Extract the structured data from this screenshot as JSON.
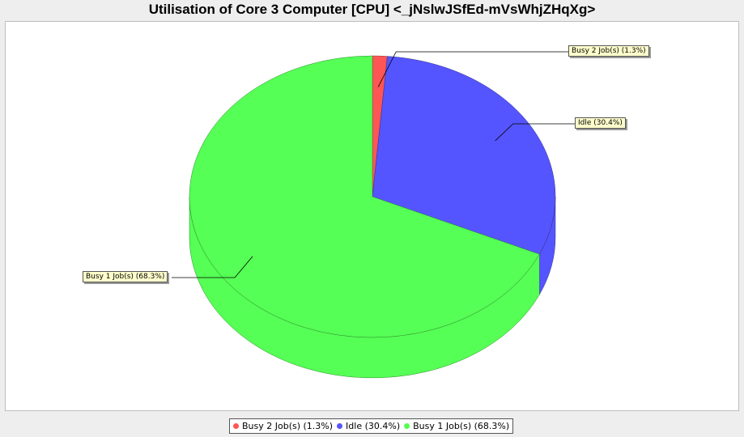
{
  "chart_data": {
    "type": "pie",
    "title": "Utilisation of Core 3 Computer [CPU] <_jNslwJSfEd-mVsWhjZHqXg>",
    "slices": [
      {
        "label": "Busy 2 Job(s) (1.3%)",
        "value": 1.3,
        "color": "#ff5555"
      },
      {
        "label": "Idle (30.4%)",
        "value": 30.4,
        "color": "#5555ff"
      },
      {
        "label": "Busy 1 Job(s) (68.3%)",
        "value": 68.3,
        "color": "#55ff55"
      }
    ],
    "legend_position": "bottom",
    "style": "3d"
  }
}
